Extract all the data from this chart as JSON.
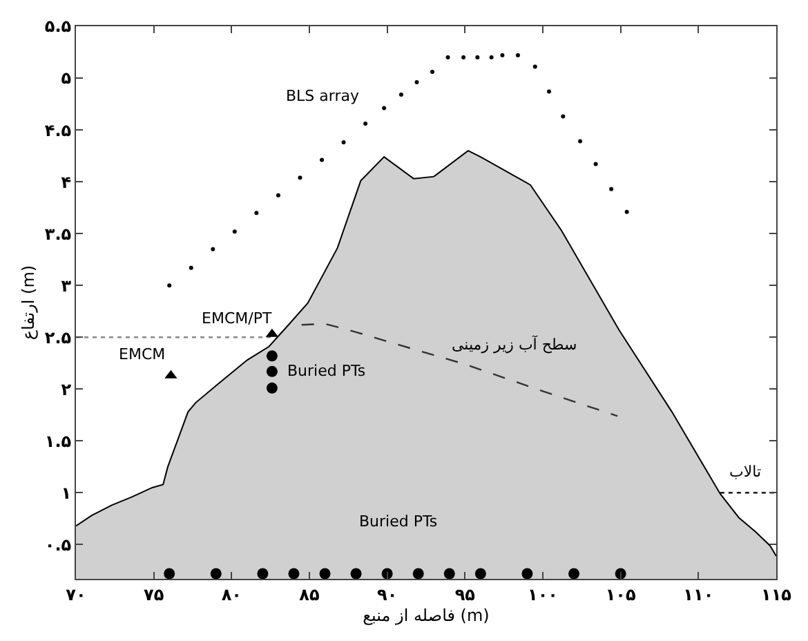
{
  "chart_data": {
    "type": "area",
    "xlabel": "فاصله از منبع (m)",
    "ylabel": "ارتفاع (m)",
    "xlim": [
      70,
      115
    ],
    "ylim": [
      0.17,
      5.5
    ],
    "xticks": [
      {
        "value": 70,
        "label": "۷۰"
      },
      {
        "value": 75,
        "label": "۷۵"
      },
      {
        "value": 80,
        "label": "۸۰"
      },
      {
        "value": 85,
        "label": "۸۵"
      },
      {
        "value": 90,
        "label": "۹۰"
      },
      {
        "value": 95,
        "label": "۹۵"
      },
      {
        "value": 100,
        "label": "۱۰۰"
      },
      {
        "value": 105,
        "label": "۱۰۵"
      },
      {
        "value": 110,
        "label": "۱۱۰"
      },
      {
        "value": 115,
        "label": "۱۱۵"
      }
    ],
    "yticks": [
      {
        "value": 0.5,
        "label": "۰.۵"
      },
      {
        "value": 1,
        "label": "۱"
      },
      {
        "value": 1.5,
        "label": "۱.۵"
      },
      {
        "value": 2,
        "label": "۲"
      },
      {
        "value": 2.5,
        "label": "۲.۵"
      },
      {
        "value": 3,
        "label": "۳"
      },
      {
        "value": 3.5,
        "label": "۳.۵"
      },
      {
        "value": 4,
        "label": "۴"
      },
      {
        "value": 4.5,
        "label": "۴.۵"
      },
      {
        "value": 5,
        "label": "۵"
      },
      {
        "value": 5.5,
        "label": "۵.۵"
      }
    ],
    "grid": false,
    "legend": false,
    "series": [
      {
        "color": "#d0d0d0",
        "x": [
          70,
          71,
          72.3,
          73.6,
          74.9,
          75.6,
          75.9,
          77.2,
          77.7,
          79.3,
          81,
          82.4,
          83.6,
          84.9,
          86.8,
          88.3,
          89.8,
          91.7,
          93,
          95.2,
          96,
          99.2,
          101.2,
          104.9,
          108.3,
          111.4,
          112.6,
          113.7,
          114.6,
          115
        ],
        "values": [
          0.68,
          0.78,
          0.88,
          0.96,
          1.05,
          1.08,
          1.25,
          1.78,
          1.87,
          2.07,
          2.28,
          2.41,
          2.61,
          2.83,
          3.36,
          4.01,
          4.24,
          4.03,
          4.05,
          4.3,
          4.24,
          3.97,
          3.53,
          2.57,
          1.78,
          0.99,
          0.76,
          0.62,
          0.49,
          0.39
        ]
      },
      {
        "type": "scatter",
        "name": "BLS array",
        "color": "#000000",
        "marker": "circle",
        "x": [
          76,
          77.4,
          78.8,
          80.2,
          81.6,
          83,
          84.4,
          85.8,
          87.2,
          88.6,
          89.8,
          90.9,
          91.9,
          92.9,
          93.9,
          94.9,
          95.8,
          96.7,
          97.4,
          98.4,
          99.5,
          100.4,
          101.3,
          102.4,
          103.4,
          104.4,
          105.4
        ],
        "values": [
          3.0,
          3.17,
          3.35,
          3.52,
          3.7,
          3.87,
          4.04,
          4.21,
          4.38,
          4.56,
          4.71,
          4.84,
          4.96,
          5.06,
          5.2,
          5.2,
          5.2,
          5.2,
          5.22,
          5.22,
          5.11,
          4.87,
          4.63,
          4.39,
          4.17,
          3.93,
          3.71
        ]
      },
      {
        "type": "line",
        "name": "سطح آب زیر زمینی",
        "color": "#333333",
        "line_style": "dashed",
        "x": [
          84.5,
          86,
          88,
          90,
          95,
          100,
          104.8
        ],
        "values": [
          2.62,
          2.63,
          2.55,
          2.46,
          2.24,
          1.98,
          1.74
        ]
      },
      {
        "type": "line",
        "color": "#888888",
        "line_style": "dotted",
        "x": [
          70,
          82.6
        ],
        "values": [
          2.5,
          2.5
        ]
      },
      {
        "type": "line",
        "name": "تالاب",
        "color": "#000000",
        "line_style": "dotted",
        "x": [
          111.4,
          115
        ],
        "values": [
          1,
          1
        ]
      },
      {
        "type": "scatter",
        "name": "EMCM",
        "color": "#000000",
        "marker": "triangle",
        "x": [
          76.1
        ],
        "values": [
          2.13
        ]
      },
      {
        "type": "scatter",
        "name": "EMCM/PT",
        "color": "#000000",
        "marker": "triangle",
        "x": [
          82.6
        ],
        "values": [
          2.53
        ]
      },
      {
        "type": "scatter",
        "name": "Buried PTs",
        "color": "#000000",
        "marker": "circle",
        "x": [
          82.6,
          82.6,
          82.6
        ],
        "values": [
          2.32,
          2.17,
          2.01
        ]
      },
      {
        "type": "scatter",
        "name": "Buried PTs",
        "color": "#000000",
        "marker": "circle",
        "x": [
          76,
          79,
          82,
          84,
          86,
          88,
          90,
          92,
          94,
          96,
          99,
          102,
          105
        ],
        "values": [
          0.22,
          0.22,
          0.22,
          0.22,
          0.22,
          0.22,
          0.22,
          0.22,
          0.22,
          0.22,
          0.22,
          0.22,
          0.22
        ]
      }
    ]
  }
}
